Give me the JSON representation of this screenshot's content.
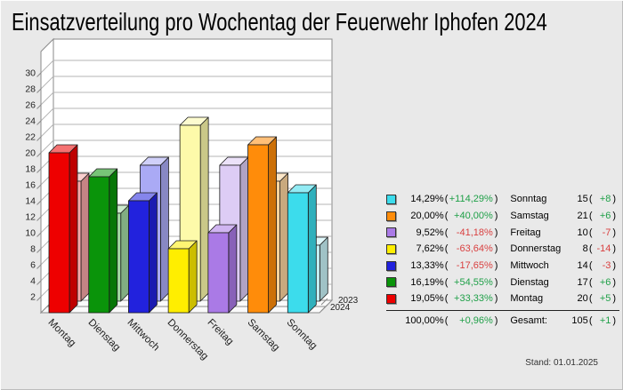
{
  "title": "Einsatzverteilung pro Wochentag der Feuerwehr Iphofen 2024",
  "footer": {
    "stand": "Stand: 01.01.2025"
  },
  "chart_data": {
    "type": "bar",
    "projection": "3d-oblique",
    "title": "Einsatzverteilung pro Wochentag der Feuerwehr Iphofen 2024",
    "categories": [
      "Montag",
      "Dienstag",
      "Mittwoch",
      "Donnerstag",
      "Freitag",
      "Samstag",
      "Sonntag"
    ],
    "series": [
      {
        "name": "2023",
        "values": [
          15,
          11,
          17,
          22,
          17,
          15,
          7
        ],
        "colors": [
          "#f7a6a6",
          "#a3d9a3",
          "#aaaaf5",
          "#fdfaaa",
          "#ddccf5",
          "#fcd49e",
          "#c8f3f8"
        ]
      },
      {
        "name": "2024",
        "values": [
          20,
          17,
          14,
          8,
          10,
          21,
          15
        ],
        "colors": [
          "#ee0000",
          "#0a940a",
          "#2222dd",
          "#ffee00",
          "#aa7ae6",
          "#ff8c0a",
          "#3cdcec"
        ]
      }
    ],
    "xlabel": "",
    "ylabel": "",
    "ylim": [
      0,
      32
    ],
    "ytick_step": 2,
    "ytick_labels": [
      2,
      4,
      6,
      8,
      10,
      12,
      14,
      16,
      18,
      20,
      22,
      24,
      26,
      28,
      30
    ],
    "grid": true,
    "depth_axis_labels": [
      "2023",
      "2024"
    ],
    "palette": {
      "background": "#e9e9e9",
      "wall": "#ffffff",
      "floor": "#fafafa",
      "gridline": "#b4b4b4",
      "frame": "#8a8a8a",
      "bar_outline": "#1a1a1a"
    }
  },
  "legend": {
    "rows": [
      {
        "color": "#3cdcec",
        "pct": "14,29%",
        "pct_diff": "+114,29%",
        "trend": "up",
        "label": "Sonntag",
        "count": "15",
        "count_diff": "+8"
      },
      {
        "color": "#ff8c0a",
        "pct": "20,00%",
        "pct_diff": "+40,00%",
        "trend": "up",
        "label": "Samstag",
        "count": "21",
        "count_diff": "+6"
      },
      {
        "color": "#aa7ae6",
        "pct": "9,52%",
        "pct_diff": "-41,18%",
        "trend": "down",
        "label": "Freitag",
        "count": "10",
        "count_diff": "-7"
      },
      {
        "color": "#ffee00",
        "pct": "7,62%",
        "pct_diff": "-63,64%",
        "trend": "down",
        "label": "Donnerstag",
        "count": "8",
        "count_diff": "-14"
      },
      {
        "color": "#2222dd",
        "pct": "13,33%",
        "pct_diff": "-17,65%",
        "trend": "down",
        "label": "Mittwoch",
        "count": "14",
        "count_diff": "-3"
      },
      {
        "color": "#0a940a",
        "pct": "16,19%",
        "pct_diff": "+54,55%",
        "trend": "up",
        "label": "Dienstag",
        "count": "17",
        "count_diff": "+6"
      },
      {
        "color": "#ee0000",
        "pct": "19,05%",
        "pct_diff": "+33,33%",
        "trend": "up",
        "label": "Montag",
        "count": "20",
        "count_diff": "+5"
      }
    ],
    "total": {
      "pct": "100,00%",
      "pct_diff": "+0,96%",
      "trend": "up",
      "label": "Gesamt:",
      "count": "105",
      "count_diff": "+1"
    }
  },
  "colors": {
    "positive": "#1fa048",
    "negative": "#d94040"
  }
}
